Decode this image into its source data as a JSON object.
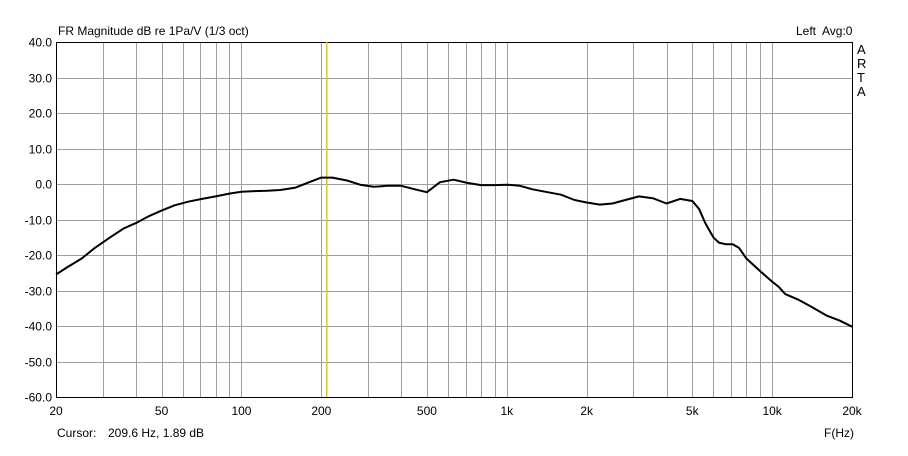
{
  "header": {
    "title": "FR Magnitude dB re 1Pa/V (1/3 oct)",
    "channel": "Left",
    "avg": "Avg:0",
    "brand": [
      "A",
      "R",
      "T",
      "A"
    ]
  },
  "footer": {
    "cursor_label": "Cursor:",
    "cursor_value": "209.6 Hz, 1.89 dB",
    "x_unit": "F(Hz)"
  },
  "colors": {
    "background": "#ffffff",
    "grid": "#a0a0a0",
    "axis": "#000000",
    "curve": "#000000",
    "cursor": "#e6c800"
  },
  "chart_data": {
    "type": "line",
    "title": "FR Magnitude dB re 1Pa/V (1/3 oct)",
    "xlabel": "F(Hz)",
    "ylabel": "",
    "xscale": "log",
    "xlim": [
      20,
      20000
    ],
    "ylim": [
      -60,
      40
    ],
    "grid": true,
    "x_ticks": [
      20,
      50,
      100,
      200,
      500,
      1000,
      2000,
      5000,
      10000,
      20000
    ],
    "x_tick_labels": [
      "20",
      "50",
      "100",
      "200",
      "500",
      "1k",
      "2k",
      "5k",
      "10k",
      "20k"
    ],
    "y_ticks": [
      -60,
      -50,
      -40,
      -30,
      -20,
      -10,
      0,
      10,
      20,
      30,
      40
    ],
    "y_tick_labels": [
      "-60.0",
      "-50.0",
      "-40.0",
      "-30.0",
      "-20.0",
      "-10.0",
      "0.0",
      "10.0",
      "20.0",
      "30.0",
      "40.0"
    ],
    "cursor": {
      "x": 209.6,
      "y": 1.89
    },
    "series": [
      {
        "x": [
          20,
          22,
          25,
          28,
          32,
          36,
          40,
          45,
          50,
          56,
          63,
          71,
          80,
          90,
          100,
          112,
          125,
          140,
          160,
          180,
          200,
          220,
          250,
          280,
          315,
          355,
          400,
          450,
          500,
          560,
          630,
          710,
          800,
          900,
          1000,
          1120,
          1250,
          1400,
          1600,
          1800,
          2000,
          2240,
          2500,
          2800,
          3150,
          3550,
          4000,
          4500,
          5000,
          5300,
          5600,
          6000,
          6300,
          6700,
          7100,
          7500,
          8000,
          9000,
          10000,
          10600,
          11200,
          12500,
          14000,
          16000,
          18000,
          20000
        ],
        "y": [
          -25.5,
          -23.5,
          -21,
          -18,
          -15,
          -12.5,
          -11,
          -9,
          -7.5,
          -6,
          -5,
          -4.2,
          -3.5,
          -2.7,
          -2.2,
          -2,
          -1.9,
          -1.7,
          -1,
          0.5,
          1.8,
          1.8,
          1,
          -0.2,
          -0.8,
          -0.5,
          -0.5,
          -1.5,
          -2.3,
          0.5,
          1.2,
          0.3,
          -0.3,
          -0.3,
          -0.2,
          -0.5,
          -1.5,
          -2.2,
          -3,
          -4.5,
          -5.2,
          -5.8,
          -5.5,
          -4.5,
          -3.5,
          -4,
          -5.5,
          -4.2,
          -4.8,
          -7,
          -11,
          -15,
          -16.5,
          -17,
          -17,
          -18,
          -21,
          -24.5,
          -27.5,
          -29,
          -31,
          -32.5,
          -34.5,
          -37,
          -38.5,
          -40.2
        ]
      }
    ]
  }
}
